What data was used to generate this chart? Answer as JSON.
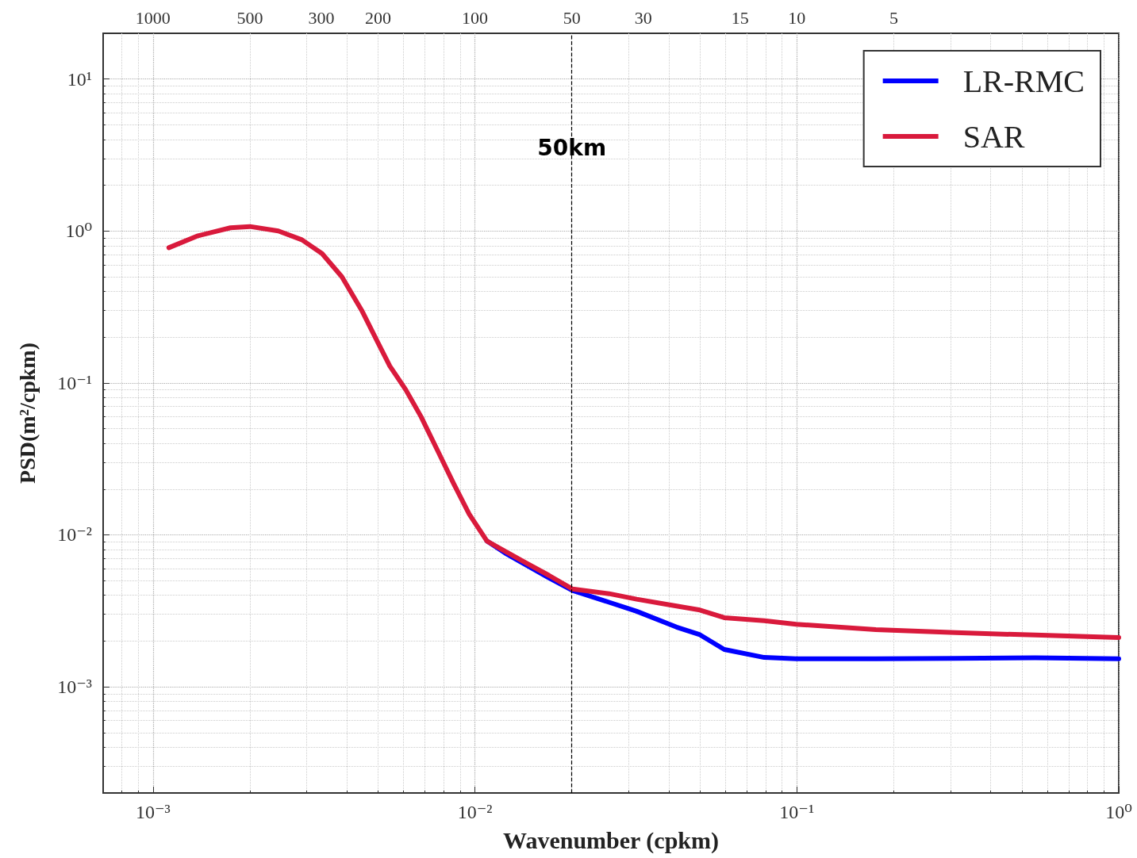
{
  "chart_data": {
    "type": "line",
    "xlabel": "Wavenumber (cpkm)",
    "ylabel": "PSD(m²/cpkm)",
    "log": "xy",
    "grid": true,
    "legend": "top right",
    "marker": "none",
    "line_style": "solid",
    "xlim": [
      0.0007,
      1
    ],
    "ylim": [
      0.0002,
      20
    ],
    "xticks": [
      {
        "value": 0.001,
        "label": "10⁻³"
      },
      {
        "value": 0.01,
        "label": "10⁻²"
      },
      {
        "value": 0.1,
        "label": "10⁻¹"
      },
      {
        "value": 1,
        "label": "10⁰"
      }
    ],
    "yticks": [
      {
        "value": 0.001,
        "label": "10⁻³"
      },
      {
        "value": 0.01,
        "label": "10⁻²"
      },
      {
        "value": 0.1,
        "label": "10⁻¹"
      },
      {
        "value": 1,
        "label": "10⁰"
      },
      {
        "value": 10,
        "label": "10¹"
      }
    ],
    "annotations": [
      "1000",
      "500",
      "300",
      "200",
      "100",
      "50",
      "30",
      "15",
      "10",
      "5"
    ],
    "ref_lines": [
      {
        "axis": "x",
        "value": 0.02,
        "label": "50km",
        "color": "#000000",
        "line_style": "dashed"
      }
    ],
    "series": [
      {
        "name": "LR-RMC",
        "color": "#0000ff",
        "x": [
          0.0109,
          0.0124,
          0.0143,
          0.017,
          0.0201,
          0.0261,
          0.0318,
          0.0423,
          0.05,
          0.0595,
          0.0792,
          0.0995,
          0.176,
          0.311,
          0.55,
          1.0
        ],
        "values": [
          0.0091,
          0.0076,
          0.0064,
          0.0052,
          0.0043,
          0.0036,
          0.00314,
          0.00247,
          0.0022,
          0.00176,
          0.00156,
          0.00153,
          0.00153,
          0.00154,
          0.00155,
          0.00153
        ]
      },
      {
        "name": "SAR",
        "color": "#d91a3c",
        "x": [
          0.00112,
          0.00138,
          0.00174,
          0.002,
          0.00245,
          0.0029,
          0.00335,
          0.00386,
          0.00445,
          0.00499,
          0.00544,
          0.0061,
          0.0068,
          0.0077,
          0.0086,
          0.0096,
          0.0109,
          0.0124,
          0.0143,
          0.017,
          0.0201,
          0.0261,
          0.0318,
          0.0423,
          0.05,
          0.0595,
          0.0792,
          0.0995,
          0.176,
          0.311,
          0.55,
          1.0
        ],
        "values": [
          0.776,
          0.93,
          1.05,
          1.07,
          1.0,
          0.875,
          0.71,
          0.5,
          0.3,
          0.185,
          0.129,
          0.09,
          0.06,
          0.035,
          0.0216,
          0.0137,
          0.0091,
          0.0078,
          0.0066,
          0.0054,
          0.0044,
          0.0041,
          0.00377,
          0.0034,
          0.0032,
          0.00285,
          0.00272,
          0.00258,
          0.00238,
          0.00227,
          0.00219,
          0.00211
        ]
      }
    ]
  }
}
